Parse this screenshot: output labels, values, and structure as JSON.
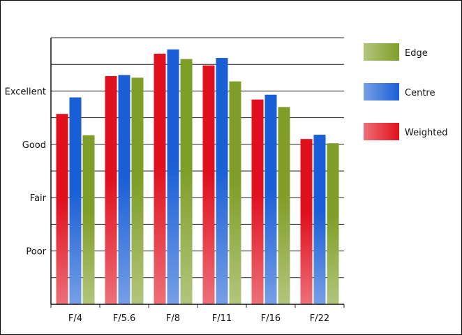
{
  "chart_data": {
    "type": "bar",
    "title": "",
    "xlabel": "",
    "ylabel": "",
    "categories": [
      "F/4",
      "F/5.6",
      "F/8",
      "F/11",
      "F/16",
      "F/22"
    ],
    "y_ticks": [
      {
        "label": "Poor",
        "value": 1
      },
      {
        "label": "Fair",
        "value": 2
      },
      {
        "label": "Good",
        "value": 3
      },
      {
        "label": "Excellent",
        "value": 4
      }
    ],
    "ylim": [
      0,
      5
    ],
    "grid": true,
    "legend_position": "right",
    "series": [
      {
        "name": "Weighted",
        "color": "#e0101e",
        "values": [
          3.57,
          4.28,
          4.7,
          4.48,
          3.84,
          3.1
        ]
      },
      {
        "name": "Centre",
        "color": "#1a5fd6",
        "values": [
          3.88,
          4.3,
          4.78,
          4.62,
          3.93,
          3.18
        ]
      },
      {
        "name": "Edge",
        "color": "#7f9e27",
        "values": [
          3.17,
          4.25,
          4.6,
          4.18,
          3.7,
          3.02
        ]
      }
    ],
    "legend_order": [
      "Edge",
      "Centre",
      "Weighted"
    ]
  }
}
